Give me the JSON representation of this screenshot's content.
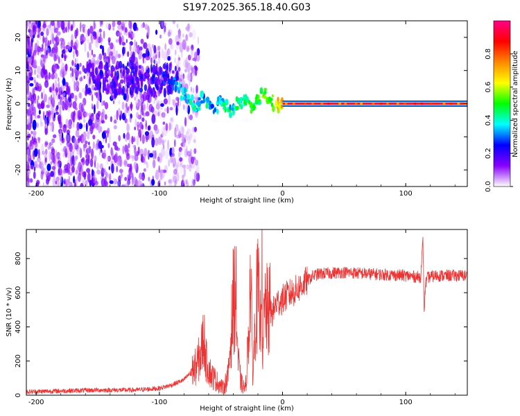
{
  "title": "S197.2025.365.18.40.G03",
  "chart_data": [
    {
      "type": "heatmap",
      "name": "spectrogram",
      "xlabel": "Height of straight line (km)",
      "ylabel": "Frequency (Hz)",
      "xlim": [
        -208,
        150
      ],
      "ylim": [
        -25,
        25
      ],
      "xticks": [
        -200,
        -100,
        0,
        100
      ],
      "yticks": [
        20,
        10,
        0,
        -10,
        -20
      ],
      "colorbar": {
        "label": "Normalized spectral amplitude",
        "range": [
          0,
          1
        ],
        "ticks": [
          "0.0",
          "0.2",
          "0.4",
          "0.6",
          "0.8"
        ],
        "stops": [
          "#ffffff",
          "#8800ff",
          "#0000ff",
          "#00ffff",
          "#00ff00",
          "#ffff00",
          "#ff8800",
          "#ff0000",
          "#ff0088"
        ]
      },
      "carrier": {
        "freq_hz": 0,
        "x_start": 0,
        "x_end": 150,
        "amplitude": 0.95
      },
      "transition": [
        {
          "x": -95,
          "f": 8,
          "a": 0.3
        },
        {
          "x": -90,
          "f": 6,
          "a": 0.35
        },
        {
          "x": -85,
          "f": 5,
          "a": 0.4
        },
        {
          "x": -80,
          "f": 3,
          "a": 0.45
        },
        {
          "x": -75,
          "f": 1,
          "a": 0.45
        },
        {
          "x": -70,
          "f": -1,
          "a": 0.45
        },
        {
          "x": -65,
          "f": 2,
          "a": 0.4
        },
        {
          "x": -60,
          "f": 0,
          "a": 0.45
        },
        {
          "x": -55,
          "f": -1,
          "a": 0.4
        },
        {
          "x": -50,
          "f": 1,
          "a": 0.45
        },
        {
          "x": -45,
          "f": -1,
          "a": 0.5
        },
        {
          "x": -40,
          "f": -2,
          "a": 0.45
        },
        {
          "x": -35,
          "f": 0,
          "a": 0.5
        },
        {
          "x": -30,
          "f": 1,
          "a": 0.5
        },
        {
          "x": -25,
          "f": -1,
          "a": 0.55
        },
        {
          "x": -20,
          "f": 1,
          "a": 0.55
        },
        {
          "x": -15,
          "f": 3,
          "a": 0.6
        },
        {
          "x": -10,
          "f": 1,
          "a": 0.6
        },
        {
          "x": -5,
          "f": -1,
          "a": 0.65
        },
        {
          "x": -2,
          "f": 0,
          "a": 0.75
        }
      ]
    },
    {
      "type": "line",
      "name": "snr",
      "xlabel": "Height of straight line (km)",
      "ylabel": "SNR (10 * v/v)",
      "xlim": [
        -208,
        150
      ],
      "ylim": [
        0,
        970
      ],
      "xticks": [
        -200,
        -100,
        0,
        100
      ],
      "yticks": [
        0,
        200,
        400,
        600,
        800
      ],
      "color": "#ee3333",
      "noise_amplitude": 35,
      "x": [
        -208,
        -180,
        -150,
        -120,
        -100,
        -90,
        -80,
        -75,
        -70,
        -66,
        -64,
        -62,
        -58,
        -52,
        -48,
        -44,
        -40,
        -38,
        -36,
        -34,
        -32,
        -30,
        -28,
        -26,
        -24,
        -22,
        -20,
        -18,
        -17,
        -16,
        -15,
        -14,
        -12,
        -10,
        -8,
        -5,
        0,
        5,
        10,
        15,
        20,
        25,
        30,
        40,
        50,
        70,
        100,
        112,
        114,
        115,
        116,
        118,
        125,
        150
      ],
      "y": [
        20,
        25,
        30,
        30,
        40,
        60,
        90,
        130,
        170,
        250,
        350,
        200,
        120,
        70,
        40,
        120,
        560,
        600,
        200,
        80,
        50,
        40,
        300,
        700,
        100,
        500,
        600,
        400,
        950,
        180,
        450,
        520,
        470,
        500,
        480,
        540,
        560,
        590,
        610,
        640,
        670,
        700,
        710,
        715,
        720,
        710,
        700,
        690,
        900,
        480,
        650,
        690,
        700,
        700
      ]
    }
  ]
}
